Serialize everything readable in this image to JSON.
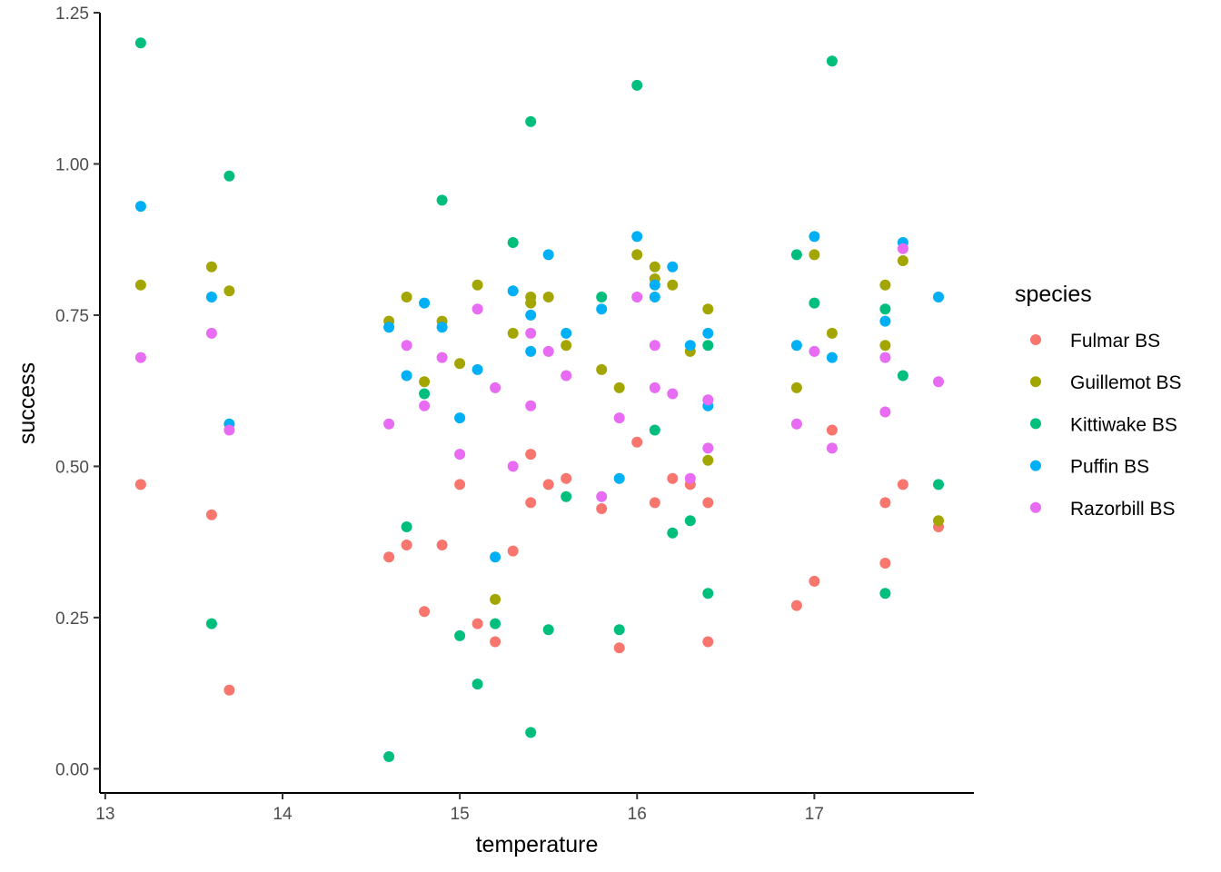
{
  "chart_data": {
    "type": "scatter",
    "title": "",
    "xlabel": "temperature",
    "ylabel": "success",
    "xlim": [
      12.97,
      17.9
    ],
    "ylim": [
      -0.04,
      1.25
    ],
    "x_ticks": [
      13,
      14,
      15,
      16,
      17
    ],
    "y_ticks": [
      0.0,
      0.25,
      0.5,
      0.75,
      1.0,
      1.25
    ],
    "y_tick_labels": [
      "0.00",
      "0.25",
      "0.50",
      "0.75",
      "1.00",
      "1.25"
    ],
    "grid": false,
    "legend": {
      "title": "species",
      "position": "right"
    },
    "series": [
      {
        "name": "Fulmar BS",
        "color": "#F8766D",
        "points": [
          [
            13.2,
            0.47
          ],
          [
            13.6,
            0.42
          ],
          [
            13.7,
            0.13
          ],
          [
            14.6,
            0.35
          ],
          [
            14.7,
            0.37
          ],
          [
            14.8,
            0.26
          ],
          [
            14.9,
            0.37
          ],
          [
            15.0,
            0.47
          ],
          [
            15.1,
            0.24
          ],
          [
            15.2,
            0.21
          ],
          [
            15.3,
            0.36
          ],
          [
            15.4,
            0.52
          ],
          [
            15.4,
            0.44
          ],
          [
            15.5,
            0.47
          ],
          [
            15.6,
            0.48
          ],
          [
            15.8,
            0.43
          ],
          [
            15.9,
            0.2
          ],
          [
            16.0,
            0.54
          ],
          [
            16.1,
            0.44
          ],
          [
            16.2,
            0.48
          ],
          [
            16.3,
            0.47
          ],
          [
            16.4,
            0.44
          ],
          [
            16.4,
            0.21
          ],
          [
            16.9,
            0.27
          ],
          [
            17.0,
            0.31
          ],
          [
            17.1,
            0.56
          ],
          [
            17.4,
            0.44
          ],
          [
            17.4,
            0.34
          ],
          [
            17.5,
            0.47
          ],
          [
            17.7,
            0.4
          ]
        ]
      },
      {
        "name": "Guillemot BS",
        "color": "#A3A500",
        "points": [
          [
            13.2,
            0.8
          ],
          [
            13.6,
            0.83
          ],
          [
            13.7,
            0.79
          ],
          [
            14.6,
            0.74
          ],
          [
            14.7,
            0.78
          ],
          [
            14.8,
            0.64
          ],
          [
            14.9,
            0.74
          ],
          [
            15.0,
            0.67
          ],
          [
            15.1,
            0.8
          ],
          [
            15.2,
            0.28
          ],
          [
            15.3,
            0.72
          ],
          [
            15.4,
            0.78
          ],
          [
            15.4,
            0.77
          ],
          [
            15.5,
            0.78
          ],
          [
            15.6,
            0.7
          ],
          [
            15.8,
            0.66
          ],
          [
            15.9,
            0.63
          ],
          [
            16.0,
            0.85
          ],
          [
            16.1,
            0.83
          ],
          [
            16.1,
            0.81
          ],
          [
            16.2,
            0.8
          ],
          [
            16.3,
            0.69
          ],
          [
            16.4,
            0.76
          ],
          [
            16.4,
            0.51
          ],
          [
            16.9,
            0.63
          ],
          [
            17.0,
            0.85
          ],
          [
            17.1,
            0.72
          ],
          [
            17.4,
            0.8
          ],
          [
            17.4,
            0.7
          ],
          [
            17.5,
            0.84
          ],
          [
            17.7,
            0.41
          ]
        ]
      },
      {
        "name": "Kittiwake BS",
        "color": "#00BF7D",
        "points": [
          [
            13.2,
            1.2
          ],
          [
            13.6,
            0.24
          ],
          [
            13.7,
            0.98
          ],
          [
            14.6,
            0.02
          ],
          [
            14.7,
            0.4
          ],
          [
            14.8,
            0.62
          ],
          [
            14.9,
            0.94
          ],
          [
            15.0,
            0.22
          ],
          [
            15.1,
            0.14
          ],
          [
            15.2,
            0.24
          ],
          [
            15.3,
            0.87
          ],
          [
            15.4,
            1.07
          ],
          [
            15.4,
            0.06
          ],
          [
            15.5,
            0.23
          ],
          [
            15.6,
            0.45
          ],
          [
            15.8,
            0.78
          ],
          [
            15.9,
            0.23
          ],
          [
            16.0,
            1.13
          ],
          [
            16.1,
            0.56
          ],
          [
            16.2,
            0.39
          ],
          [
            16.3,
            0.41
          ],
          [
            16.4,
            0.7
          ],
          [
            16.4,
            0.29
          ],
          [
            16.9,
            0.85
          ],
          [
            17.0,
            0.77
          ],
          [
            17.1,
            1.17
          ],
          [
            17.4,
            0.76
          ],
          [
            17.4,
            0.29
          ],
          [
            17.5,
            0.65
          ],
          [
            17.7,
            0.47
          ]
        ]
      },
      {
        "name": "Puffin BS",
        "color": "#00B0F6",
        "points": [
          [
            13.2,
            0.93
          ],
          [
            13.6,
            0.78
          ],
          [
            13.7,
            0.57
          ],
          [
            14.6,
            0.73
          ],
          [
            14.7,
            0.65
          ],
          [
            14.8,
            0.77
          ],
          [
            14.9,
            0.73
          ],
          [
            15.0,
            0.58
          ],
          [
            15.1,
            0.66
          ],
          [
            15.2,
            0.35
          ],
          [
            15.3,
            0.79
          ],
          [
            15.4,
            0.75
          ],
          [
            15.4,
            0.69
          ],
          [
            15.5,
            0.85
          ],
          [
            15.6,
            0.72
          ],
          [
            15.8,
            0.76
          ],
          [
            15.9,
            0.48
          ],
          [
            16.0,
            0.88
          ],
          [
            16.1,
            0.8
          ],
          [
            16.1,
            0.78
          ],
          [
            16.2,
            0.83
          ],
          [
            16.3,
            0.7
          ],
          [
            16.4,
            0.72
          ],
          [
            16.4,
            0.6
          ],
          [
            16.9,
            0.7
          ],
          [
            17.0,
            0.88
          ],
          [
            17.1,
            0.68
          ],
          [
            17.4,
            0.74
          ],
          [
            17.5,
            0.87
          ],
          [
            17.7,
            0.78
          ]
        ]
      },
      {
        "name": "Razorbill BS",
        "color": "#E76BF3",
        "points": [
          [
            13.2,
            0.68
          ],
          [
            13.6,
            0.72
          ],
          [
            13.7,
            0.56
          ],
          [
            14.6,
            0.57
          ],
          [
            14.7,
            0.7
          ],
          [
            14.8,
            0.6
          ],
          [
            14.9,
            0.68
          ],
          [
            15.0,
            0.52
          ],
          [
            15.1,
            0.76
          ],
          [
            15.2,
            0.63
          ],
          [
            15.3,
            0.5
          ],
          [
            15.4,
            0.72
          ],
          [
            15.4,
            0.6
          ],
          [
            15.5,
            0.69
          ],
          [
            15.6,
            0.65
          ],
          [
            15.8,
            0.45
          ],
          [
            15.9,
            0.58
          ],
          [
            16.0,
            0.78
          ],
          [
            16.1,
            0.7
          ],
          [
            16.1,
            0.63
          ],
          [
            16.2,
            0.62
          ],
          [
            16.3,
            0.48
          ],
          [
            16.4,
            0.61
          ],
          [
            16.4,
            0.53
          ],
          [
            16.9,
            0.57
          ],
          [
            17.0,
            0.69
          ],
          [
            17.1,
            0.53
          ],
          [
            17.4,
            0.68
          ],
          [
            17.4,
            0.59
          ],
          [
            17.5,
            0.86
          ],
          [
            17.7,
            0.64
          ]
        ]
      }
    ]
  }
}
